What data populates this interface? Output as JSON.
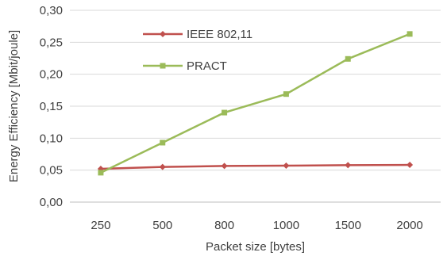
{
  "chart_data": {
    "type": "line",
    "categories": [
      "250",
      "500",
      "800",
      "1000",
      "1500",
      "2000"
    ],
    "series": [
      {
        "name": "IEEE 802,11",
        "color": "#C0504D",
        "marker": "diamond",
        "values": [
          0.052,
          0.055,
          0.0565,
          0.057,
          0.0578,
          0.0582
        ]
      },
      {
        "name": "PRACT",
        "color": "#9BBB59",
        "marker": "square",
        "values": [
          0.046,
          0.093,
          0.14,
          0.169,
          0.224,
          0.263
        ]
      }
    ],
    "xlabel": "Packet size [bytes]",
    "ylabel": "Energy Efficiency [Mbit/joule]",
    "ylim": [
      0,
      0.3
    ],
    "yticks": [
      "0,00",
      "0,05",
      "0,10",
      "0,15",
      "0,20",
      "0,25",
      "0,30"
    ],
    "grid": "horizontal",
    "legend_position": "top-left-inside"
  }
}
